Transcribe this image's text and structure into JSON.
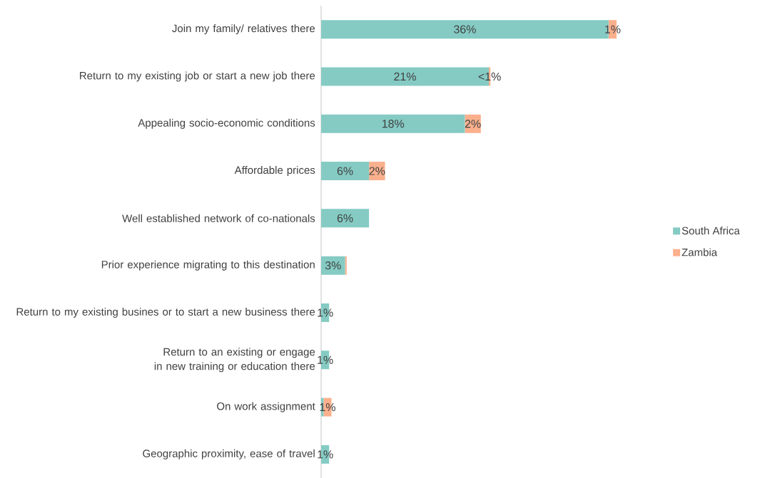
{
  "chart_data": {
    "type": "bar",
    "orientation": "horizontal",
    "stacked": true,
    "legend": "right",
    "categories": [
      "Join my family/ relatives there",
      "Return to my existing job or start a new job there",
      "Appealing socio-economic conditions",
      "Affordable prices",
      "Well established network of co-nationals",
      "Prior experience migrating to this destination",
      "Return to my existing busines or to start a new business there",
      "Return to an existing or engage in new training or education there",
      "On work assignment",
      "Geographic proximity, ease of travel"
    ],
    "series": [
      {
        "name": "South Africa",
        "color": "#85cbc4",
        "values": [
          36,
          21,
          18,
          6,
          6,
          3,
          1,
          1,
          0.3,
          1
        ],
        "value_labels": [
          "36%",
          "21%",
          "18%",
          "6%",
          "6%",
          "3%",
          "1%",
          "1%",
          null,
          "1%"
        ]
      },
      {
        "name": "Zambia",
        "color": "#fbb08d",
        "values": [
          1,
          0.2,
          2,
          2,
          null,
          0.2,
          null,
          null,
          1,
          null
        ],
        "value_labels": [
          "1%",
          "<1%",
          "2%",
          "2%",
          null,
          null,
          null,
          null,
          "1%",
          null
        ]
      }
    ]
  }
}
